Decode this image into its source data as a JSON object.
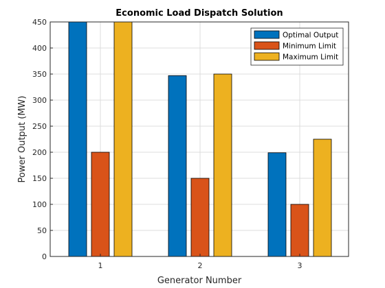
{
  "chart_data": {
    "type": "bar",
    "title": "Economic Load Dispatch Solution",
    "xlabel": "Generator Number",
    "ylabel": "Power Output (MW)",
    "categories": [
      "1",
      "2",
      "3"
    ],
    "series": [
      {
        "name": "Optimal Output",
        "values": [
          450,
          347,
          199
        ],
        "color": "#0072BD"
      },
      {
        "name": "Minimum Limit",
        "values": [
          200,
          150,
          100
        ],
        "color": "#D95319"
      },
      {
        "name": "Maximum Limit",
        "values": [
          450,
          350,
          225
        ],
        "color": "#EDB120"
      }
    ],
    "ylim": [
      0,
      450
    ],
    "yticks": [
      0,
      50,
      100,
      150,
      200,
      250,
      300,
      350,
      400,
      450
    ],
    "grid": true,
    "legend_position": "top-right"
  }
}
